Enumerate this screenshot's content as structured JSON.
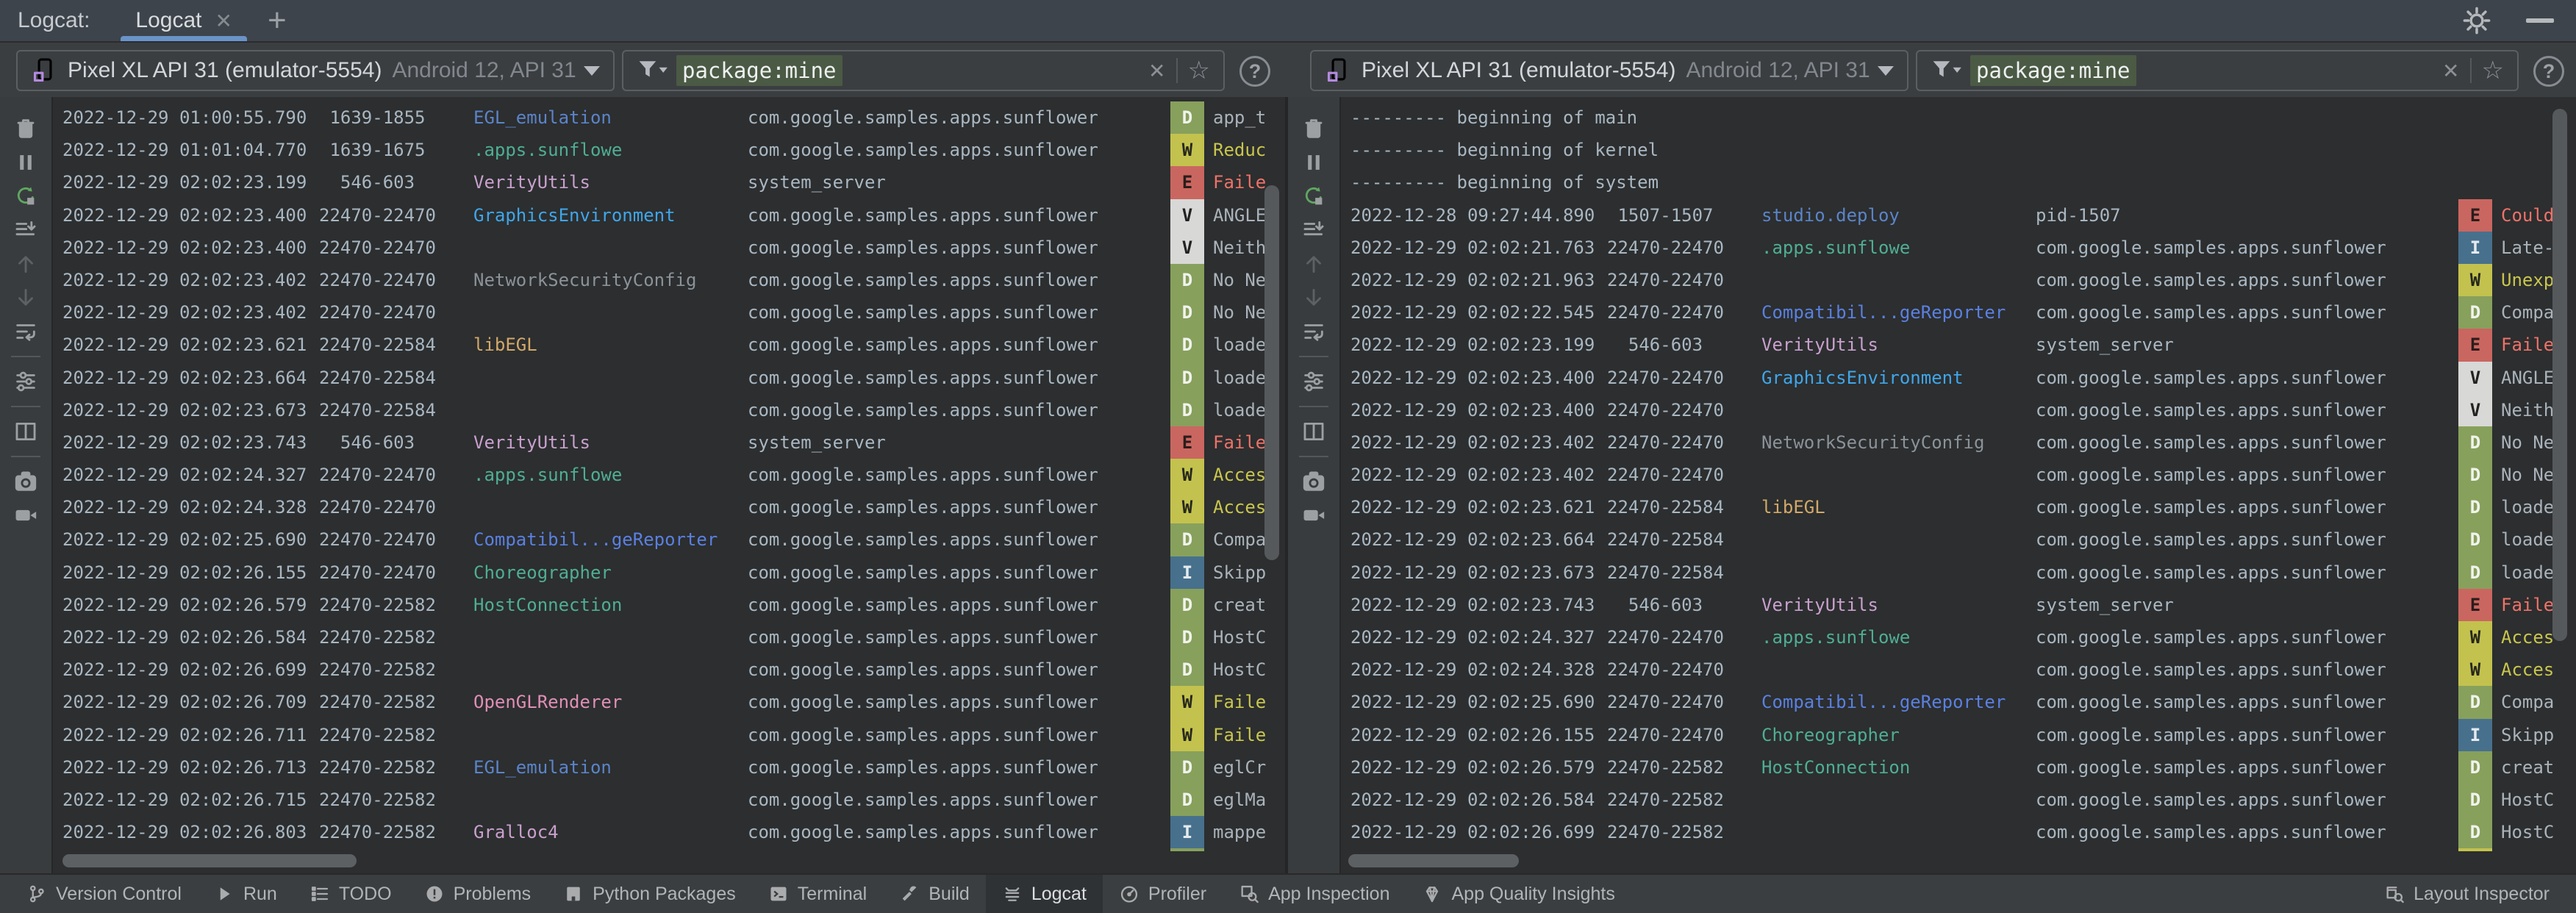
{
  "window": {
    "tab_group_label": "Logcat:",
    "tab_label": "Logcat",
    "tab_close_glyph": "✕",
    "add_tab_glyph": "+"
  },
  "pane_toolbar": {
    "icons": [
      "clear-logcat",
      "pause-logcat",
      "restart-logcat",
      "scroll-to-end",
      "previous-occurrence",
      "next-occurrence",
      "soft-wrap",
      "divider",
      "configure-logcat",
      "divider",
      "split-panels",
      "divider",
      "screenshot",
      "screen-record"
    ]
  },
  "panes": [
    {
      "device": {
        "name": "Pixel XL API 31 (emulator-5554)",
        "details": "Android 12, API 31"
      },
      "filter": {
        "value": "package:mine",
        "clear_glyph": "✕",
        "favorite_glyph": "☆",
        "help_glyph": "?"
      },
      "rows": [
        {
          "ts": "2022-12-29 01:00:55.790",
          "pid": " 1639-1855 ",
          "tag": "EGL_emulation",
          "tagColor": "blue",
          "pkg": "com.google.samples.apps.sunflower",
          "level": "D",
          "msg": "app_t"
        },
        {
          "ts": "2022-12-29 01:01:04.770",
          "pid": " 1639-1675 ",
          "tag": ".apps.sunflowe",
          "tagColor": "teal",
          "pkg": "com.google.samples.apps.sunflower",
          "level": "W",
          "msg": "Reduc"
        },
        {
          "ts": "2022-12-29 02:02:23.199",
          "pid": "  546-603  ",
          "tag": "VerityUtils",
          "tagColor": "mauve",
          "pkg": "system_server",
          "level": "E",
          "msg": "Faile"
        },
        {
          "ts": "2022-12-29 02:02:23.400",
          "pid": "22470-22470",
          "tag": "GraphicsEnvironment",
          "tagColor": "brightblue",
          "pkg": "com.google.samples.apps.sunflower",
          "level": "V",
          "msg": "ANGLE"
        },
        {
          "ts": "2022-12-29 02:02:23.400",
          "pid": "22470-22470",
          "tag": "",
          "pkg": "com.google.samples.apps.sunflower",
          "level": "V",
          "msg": "Neith"
        },
        {
          "ts": "2022-12-29 02:02:23.402",
          "pid": "22470-22470",
          "tag": "NetworkSecurityConfig",
          "tagColor": "gray",
          "pkg": "com.google.samples.apps.sunflower",
          "level": "D",
          "msg": "No Ne"
        },
        {
          "ts": "2022-12-29 02:02:23.402",
          "pid": "22470-22470",
          "tag": "",
          "pkg": "com.google.samples.apps.sunflower",
          "level": "D",
          "msg": "No Ne"
        },
        {
          "ts": "2022-12-29 02:02:23.621",
          "pid": "22470-22584",
          "tag": "libEGL",
          "tagColor": "tan",
          "pkg": "com.google.samples.apps.sunflower",
          "level": "D",
          "msg": "loade"
        },
        {
          "ts": "2022-12-29 02:02:23.664",
          "pid": "22470-22584",
          "tag": "",
          "pkg": "com.google.samples.apps.sunflower",
          "level": "D",
          "msg": "loade"
        },
        {
          "ts": "2022-12-29 02:02:23.673",
          "pid": "22470-22584",
          "tag": "",
          "pkg": "com.google.samples.apps.sunflower",
          "level": "D",
          "msg": "loade"
        },
        {
          "ts": "2022-12-29 02:02:23.743",
          "pid": "  546-603  ",
          "tag": "VerityUtils",
          "tagColor": "mauve",
          "pkg": "system_server",
          "level": "E",
          "msg": "Faile"
        },
        {
          "ts": "2022-12-29 02:02:24.327",
          "pid": "22470-22470",
          "tag": ".apps.sunflowe",
          "tagColor": "teal",
          "pkg": "com.google.samples.apps.sunflower",
          "level": "W",
          "msg": "Acces"
        },
        {
          "ts": "2022-12-29 02:02:24.328",
          "pid": "22470-22470",
          "tag": "",
          "pkg": "com.google.samples.apps.sunflower",
          "level": "W",
          "msg": "Acces"
        },
        {
          "ts": "2022-12-29 02:02:25.690",
          "pid": "22470-22470",
          "tag": "Compatibil...geReporter",
          "tagColor": "vividblue",
          "pkg": "com.google.samples.apps.sunflower",
          "level": "D",
          "msg": "Compa"
        },
        {
          "ts": "2022-12-29 02:02:26.155",
          "pid": "22470-22470",
          "tag": "Choreographer",
          "tagColor": "teal",
          "pkg": "com.google.samples.apps.sunflower",
          "level": "I",
          "msg": "Skipp"
        },
        {
          "ts": "2022-12-29 02:02:26.579",
          "pid": "22470-22582",
          "tag": "HostConnection",
          "tagColor": "teal",
          "pkg": "com.google.samples.apps.sunflower",
          "level": "D",
          "msg": "creat"
        },
        {
          "ts": "2022-12-29 02:02:26.584",
          "pid": "22470-22582",
          "tag": "",
          "pkg": "com.google.samples.apps.sunflower",
          "level": "D",
          "msg": "HostC"
        },
        {
          "ts": "2022-12-29 02:02:26.699",
          "pid": "22470-22582",
          "tag": "",
          "pkg": "com.google.samples.apps.sunflower",
          "level": "D",
          "msg": "HostC"
        },
        {
          "ts": "2022-12-29 02:02:26.709",
          "pid": "22470-22582",
          "tag": "OpenGLRenderer",
          "tagColor": "pink",
          "pkg": "com.google.samples.apps.sunflower",
          "level": "W",
          "msg": "Faile"
        },
        {
          "ts": "2022-12-29 02:02:26.711",
          "pid": "22470-22582",
          "tag": "",
          "pkg": "com.google.samples.apps.sunflower",
          "level": "W",
          "msg": "Faile"
        },
        {
          "ts": "2022-12-29 02:02:26.713",
          "pid": "22470-22582",
          "tag": "EGL_emulation",
          "tagColor": "blue",
          "pkg": "com.google.samples.apps.sunflower",
          "level": "D",
          "msg": "eglCr"
        },
        {
          "ts": "2022-12-29 02:02:26.715",
          "pid": "22470-22582",
          "tag": "",
          "pkg": "com.google.samples.apps.sunflower",
          "level": "D",
          "msg": "eglMa"
        },
        {
          "ts": "2022-12-29 02:02:26.803",
          "pid": "22470-22582",
          "tag": "Gralloc4",
          "tagColor": "mauve",
          "pkg": "com.google.samples.apps.sunflower",
          "level": "I",
          "msg": "mappe"
        },
        {
          "partial": true,
          "level": "D"
        }
      ]
    },
    {
      "device": {
        "name": "Pixel XL API 31 (emulator-5554)",
        "details": "Android 12, API 31"
      },
      "filter": {
        "value": "package:mine",
        "clear_glyph": "✕",
        "favorite_glyph": "☆",
        "help_glyph": "?"
      },
      "rows": [
        {
          "sep": "--------- beginning of main"
        },
        {
          "sep": "--------- beginning of kernel"
        },
        {
          "sep": "--------- beginning of system"
        },
        {
          "ts": "2022-12-28 09:27:44.890",
          "pid": " 1507-1507 ",
          "tag": "studio.deploy",
          "tagColor": "blue",
          "pkg": "pid-1507",
          "level": "E",
          "msg": "Could"
        },
        {
          "ts": "2022-12-29 02:02:21.763",
          "pid": "22470-22470",
          "tag": ".apps.sunflowe",
          "tagColor": "teal",
          "pkg": "com.google.samples.apps.sunflower",
          "level": "I",
          "msg": "Late-"
        },
        {
          "ts": "2022-12-29 02:02:21.963",
          "pid": "22470-22470",
          "tag": "",
          "pkg": "com.google.samples.apps.sunflower",
          "level": "W",
          "msg": "Unexp"
        },
        {
          "ts": "2022-12-29 02:02:22.545",
          "pid": "22470-22470",
          "tag": "Compatibil...geReporter",
          "tagColor": "vividblue",
          "pkg": "com.google.samples.apps.sunflower",
          "level": "D",
          "msg": "Compa"
        },
        {
          "ts": "2022-12-29 02:02:23.199",
          "pid": "  546-603  ",
          "tag": "VerityUtils",
          "tagColor": "mauve",
          "pkg": "system_server",
          "level": "E",
          "msg": "Faile"
        },
        {
          "ts": "2022-12-29 02:02:23.400",
          "pid": "22470-22470",
          "tag": "GraphicsEnvironment",
          "tagColor": "brightblue",
          "pkg": "com.google.samples.apps.sunflower",
          "level": "V",
          "msg": "ANGLE"
        },
        {
          "ts": "2022-12-29 02:02:23.400",
          "pid": "22470-22470",
          "tag": "",
          "pkg": "com.google.samples.apps.sunflower",
          "level": "V",
          "msg": "Neith"
        },
        {
          "ts": "2022-12-29 02:02:23.402",
          "pid": "22470-22470",
          "tag": "NetworkSecurityConfig",
          "tagColor": "gray",
          "pkg": "com.google.samples.apps.sunflower",
          "level": "D",
          "msg": "No Ne"
        },
        {
          "ts": "2022-12-29 02:02:23.402",
          "pid": "22470-22470",
          "tag": "",
          "pkg": "com.google.samples.apps.sunflower",
          "level": "D",
          "msg": "No Ne"
        },
        {
          "ts": "2022-12-29 02:02:23.621",
          "pid": "22470-22584",
          "tag": "libEGL",
          "tagColor": "tan",
          "pkg": "com.google.samples.apps.sunflower",
          "level": "D",
          "msg": "loade"
        },
        {
          "ts": "2022-12-29 02:02:23.664",
          "pid": "22470-22584",
          "tag": "",
          "pkg": "com.google.samples.apps.sunflower",
          "level": "D",
          "msg": "loade"
        },
        {
          "ts": "2022-12-29 02:02:23.673",
          "pid": "22470-22584",
          "tag": "",
          "pkg": "com.google.samples.apps.sunflower",
          "level": "D",
          "msg": "loade"
        },
        {
          "ts": "2022-12-29 02:02:23.743",
          "pid": "  546-603  ",
          "tag": "VerityUtils",
          "tagColor": "mauve",
          "pkg": "system_server",
          "level": "E",
          "msg": "Faile"
        },
        {
          "ts": "2022-12-29 02:02:24.327",
          "pid": "22470-22470",
          "tag": ".apps.sunflowe",
          "tagColor": "teal",
          "pkg": "com.google.samples.apps.sunflower",
          "level": "W",
          "msg": "Acces"
        },
        {
          "ts": "2022-12-29 02:02:24.328",
          "pid": "22470-22470",
          "tag": "",
          "pkg": "com.google.samples.apps.sunflower",
          "level": "W",
          "msg": "Acces"
        },
        {
          "ts": "2022-12-29 02:02:25.690",
          "pid": "22470-22470",
          "tag": "Compatibil...geReporter",
          "tagColor": "vividblue",
          "pkg": "com.google.samples.apps.sunflower",
          "level": "D",
          "msg": "Compa"
        },
        {
          "ts": "2022-12-29 02:02:26.155",
          "pid": "22470-22470",
          "tag": "Choreographer",
          "tagColor": "teal",
          "pkg": "com.google.samples.apps.sunflower",
          "level": "I",
          "msg": "Skipp"
        },
        {
          "ts": "2022-12-29 02:02:26.579",
          "pid": "22470-22582",
          "tag": "HostConnection",
          "tagColor": "teal",
          "pkg": "com.google.samples.apps.sunflower",
          "level": "D",
          "msg": "creat"
        },
        {
          "ts": "2022-12-29 02:02:26.584",
          "pid": "22470-22582",
          "tag": "",
          "pkg": "com.google.samples.apps.sunflower",
          "level": "D",
          "msg": "HostC"
        },
        {
          "ts": "2022-12-29 02:02:26.699",
          "pid": "22470-22582",
          "tag": "",
          "pkg": "com.google.samples.apps.sunflower",
          "level": "D",
          "msg": "HostC"
        },
        {
          "partial": true,
          "level": "W"
        }
      ]
    }
  ],
  "footer": {
    "left": [
      {
        "label": "Version Control",
        "icon": "branch"
      },
      {
        "label": "Run",
        "icon": "play"
      },
      {
        "label": "TODO",
        "icon": "todo"
      },
      {
        "label": "Problems",
        "icon": "problems"
      },
      {
        "label": "Python Packages",
        "icon": "package"
      },
      {
        "label": "Terminal",
        "icon": "terminal"
      },
      {
        "label": "Build",
        "icon": "build"
      },
      {
        "label": "Logcat",
        "icon": "logcat",
        "active": true
      },
      {
        "label": "Profiler",
        "icon": "profiler"
      },
      {
        "label": "App Inspection",
        "icon": "inspection"
      },
      {
        "label": "App Quality Insights",
        "icon": "gem"
      }
    ],
    "right": [
      {
        "label": "Layout Inspector",
        "icon": "layout-inspector"
      }
    ]
  },
  "colors": {
    "tab_accent": "#6a93c9",
    "filter_chip_bg": "#4b5a44",
    "level_D": "#87a05c",
    "level_W": "#c3c24e",
    "level_E": "#ca6660",
    "level_V": "#d8d8d6",
    "level_I": "#47708d",
    "msg_error": "#ef7269",
    "msg_warn": "#c9c64e",
    "log_text": "#a9b7c2",
    "tag_blue": "#5b84c9",
    "tag_teal": "#4fae93",
    "tag_mauve": "#c9a0ce",
    "tag_brightblue": "#3fa6ea",
    "tag_gray": "#8b9299",
    "tag_tan": "#d3a869",
    "tag_vividblue": "#5a80e0",
    "tag_pink": "#df8fb7"
  }
}
